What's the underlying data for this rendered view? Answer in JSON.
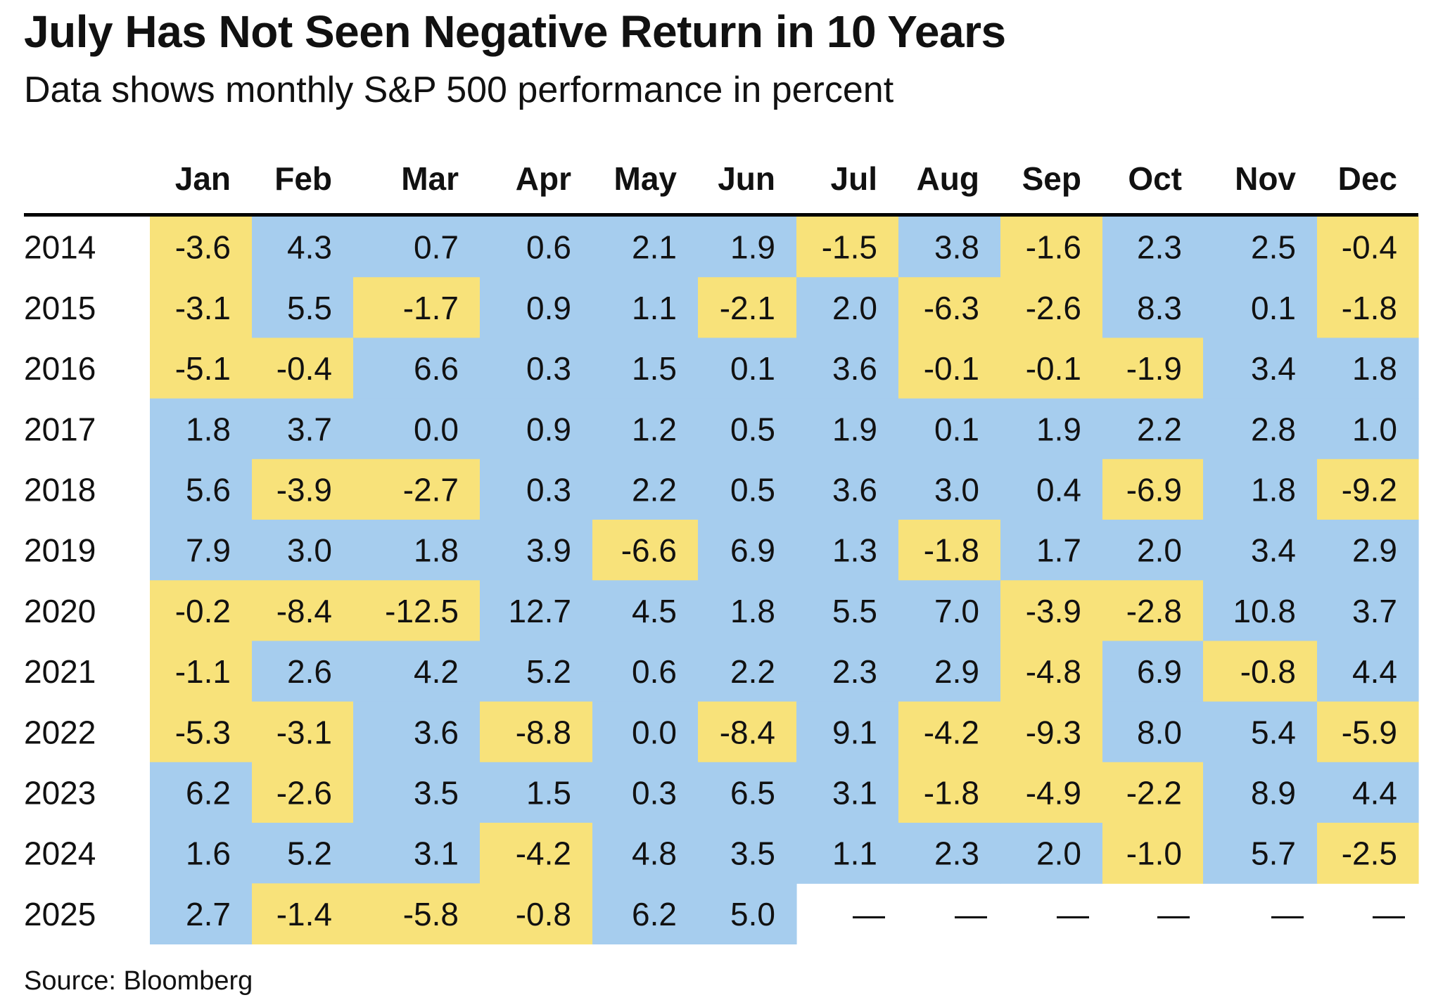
{
  "header": {
    "title": "July Has Not Seen Negative Return in 10 Years",
    "subtitle": "Data shows monthly S&P 500 performance in percent"
  },
  "footer": {
    "source": "Source: Bloomberg"
  },
  "colors": {
    "positive": "#a6cdee",
    "negative": "#f8e27a",
    "text": "#111111",
    "rule": "#000000",
    "missing": "#ffffff"
  },
  "chart_data": {
    "type": "table",
    "title": "July Has Not Seen Negative Return in 10 Years",
    "subtitle": "Data shows monthly S&P 500 performance in percent",
    "columns": [
      "Jan",
      "Feb",
      "Mar",
      "Apr",
      "May",
      "Jun",
      "Jul",
      "Aug",
      "Sep",
      "Oct",
      "Nov",
      "Dec"
    ],
    "missing_label": "—",
    "rows": [
      {
        "year": "2014",
        "values": [
          "-3.6",
          "4.3",
          "0.7",
          "0.6",
          "2.1",
          "1.9",
          "-1.5",
          "3.8",
          "-1.6",
          "2.3",
          "2.5",
          "-0.4"
        ]
      },
      {
        "year": "2015",
        "values": [
          "-3.1",
          "5.5",
          "-1.7",
          "0.9",
          "1.1",
          "-2.1",
          "2.0",
          "-6.3",
          "-2.6",
          "8.3",
          "0.1",
          "-1.8"
        ]
      },
      {
        "year": "2016",
        "values": [
          "-5.1",
          "-0.4",
          "6.6",
          "0.3",
          "1.5",
          "0.1",
          "3.6",
          "-0.1",
          "-0.1",
          "-1.9",
          "3.4",
          "1.8"
        ]
      },
      {
        "year": "2017",
        "values": [
          "1.8",
          "3.7",
          "0.0",
          "0.9",
          "1.2",
          "0.5",
          "1.9",
          "0.1",
          "1.9",
          "2.2",
          "2.8",
          "1.0"
        ]
      },
      {
        "year": "2018",
        "values": [
          "5.6",
          "-3.9",
          "-2.7",
          "0.3",
          "2.2",
          "0.5",
          "3.6",
          "3.0",
          "0.4",
          "-6.9",
          "1.8",
          "-9.2"
        ]
      },
      {
        "year": "2019",
        "values": [
          "7.9",
          "3.0",
          "1.8",
          "3.9",
          "-6.6",
          "6.9",
          "1.3",
          "-1.8",
          "1.7",
          "2.0",
          "3.4",
          "2.9"
        ]
      },
      {
        "year": "2020",
        "values": [
          "-0.2",
          "-8.4",
          "-12.5",
          "12.7",
          "4.5",
          "1.8",
          "5.5",
          "7.0",
          "-3.9",
          "-2.8",
          "10.8",
          "3.7"
        ]
      },
      {
        "year": "2021",
        "values": [
          "-1.1",
          "2.6",
          "4.2",
          "5.2",
          "0.6",
          "2.2",
          "2.3",
          "2.9",
          "-4.8",
          "6.9",
          "-0.8",
          "4.4"
        ]
      },
      {
        "year": "2022",
        "values": [
          "-5.3",
          "-3.1",
          "3.6",
          "-8.8",
          "0.0",
          "-8.4",
          "9.1",
          "-4.2",
          "-9.3",
          "8.0",
          "5.4",
          "-5.9"
        ]
      },
      {
        "year": "2023",
        "values": [
          "6.2",
          "-2.6",
          "3.5",
          "1.5",
          "0.3",
          "6.5",
          "3.1",
          "-1.8",
          "-4.9",
          "-2.2",
          "8.9",
          "4.4"
        ]
      },
      {
        "year": "2024",
        "values": [
          "1.6",
          "5.2",
          "3.1",
          "-4.2",
          "4.8",
          "3.5",
          "1.1",
          "2.3",
          "2.0",
          "-1.0",
          "5.7",
          "-2.5"
        ]
      },
      {
        "year": "2025",
        "values": [
          "2.7",
          "-1.4",
          "-5.8",
          "-0.8",
          "6.2",
          "5.0",
          null,
          null,
          null,
          null,
          null,
          null
        ]
      }
    ],
    "coloring": "negative values shaded yellow, non-negative values shaded blue",
    "source": "Source: Bloomberg"
  }
}
